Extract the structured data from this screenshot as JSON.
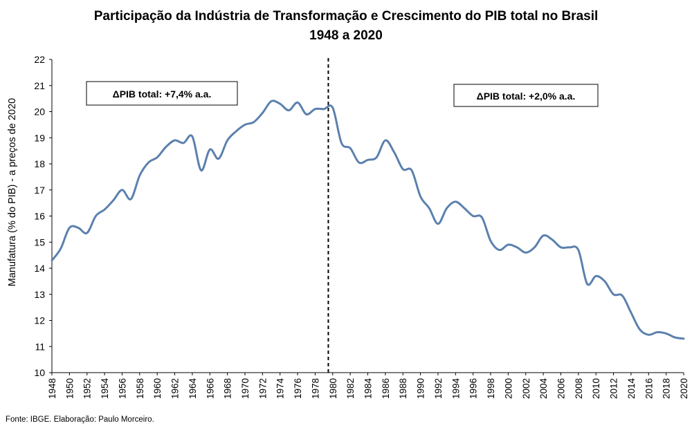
{
  "chart_data": {
    "type": "line",
    "title": "Participação da Indústria de Transformação e Crescimento do PIB total no Brasil",
    "subtitle": "1948 a 2020",
    "xlabel": "",
    "ylabel": "Manufatura (% do PIB) - a preços de 2020",
    "ylim": [
      10,
      22
    ],
    "yticks": [
      10,
      11,
      12,
      13,
      14,
      15,
      16,
      17,
      18,
      19,
      20,
      21,
      22
    ],
    "xlim": [
      1948,
      2020
    ],
    "xticks": [
      1948,
      1950,
      1952,
      1954,
      1956,
      1958,
      1960,
      1962,
      1964,
      1966,
      1968,
      1970,
      1972,
      1974,
      1976,
      1978,
      1980,
      1982,
      1984,
      1986,
      1988,
      1990,
      1992,
      1994,
      1996,
      1998,
      2000,
      2002,
      2004,
      2006,
      2008,
      2010,
      2012,
      2014,
      2016,
      2018,
      2020
    ],
    "grid": false,
    "series": [
      {
        "name": "Manufatura (% do PIB)",
        "color": "#5B80AD",
        "x": [
          1948,
          1949,
          1950,
          1951,
          1952,
          1953,
          1954,
          1955,
          1956,
          1957,
          1958,
          1959,
          1960,
          1961,
          1962,
          1963,
          1964,
          1965,
          1966,
          1967,
          1968,
          1969,
          1970,
          1971,
          1972,
          1973,
          1974,
          1975,
          1976,
          1977,
          1978,
          1979,
          1980,
          1981,
          1982,
          1983,
          1984,
          1985,
          1986,
          1987,
          1988,
          1989,
          1990,
          1991,
          1992,
          1993,
          1994,
          1995,
          1996,
          1997,
          1998,
          1999,
          2000,
          2001,
          2002,
          2003,
          2004,
          2005,
          2006,
          2007,
          2008,
          2009,
          2010,
          2011,
          2012,
          2013,
          2014,
          2015,
          2016,
          2017,
          2018,
          2019,
          2020
        ],
        "values": [
          14.3,
          14.75,
          15.55,
          15.55,
          15.35,
          16.0,
          16.25,
          16.6,
          17.0,
          16.65,
          17.55,
          18.05,
          18.25,
          18.65,
          18.9,
          18.8,
          19.05,
          17.75,
          18.55,
          18.2,
          18.9,
          19.25,
          19.5,
          19.6,
          19.95,
          20.4,
          20.3,
          20.05,
          20.35,
          19.9,
          20.1,
          20.1,
          20.15,
          18.8,
          18.6,
          18.05,
          18.15,
          18.25,
          18.9,
          18.45,
          17.8,
          17.75,
          16.75,
          16.3,
          15.7,
          16.3,
          16.55,
          16.3,
          16.0,
          15.95,
          15.05,
          14.7,
          14.9,
          14.8,
          14.6,
          14.8,
          15.25,
          15.1,
          14.8,
          14.8,
          14.7,
          13.4,
          13.7,
          13.5,
          13.0,
          12.95,
          12.3,
          11.65,
          11.45,
          11.55,
          11.5,
          11.35,
          11.3
        ]
      }
    ],
    "reference_line": {
      "x": 1979.5,
      "style": "dashed",
      "color": "#000000"
    },
    "annotations": [
      {
        "text": "ΔPIB total: +7,4% a.a."
      },
      {
        "text": "ΔPIB total: +2,0% a.a."
      }
    ]
  },
  "footer": {
    "source": "Fonte: IBGE. Elaboração: Paulo Morceiro."
  }
}
